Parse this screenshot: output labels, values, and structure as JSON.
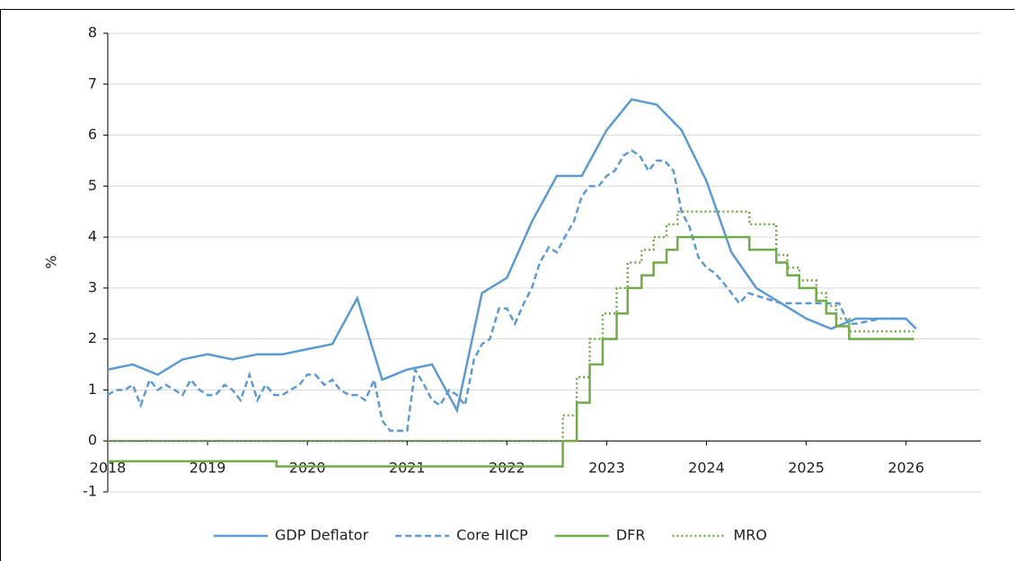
{
  "chart_data": {
    "type": "line",
    "step": "post",
    "y_label": "%",
    "xlim": [
      2018,
      2026.75
    ],
    "ylim": [
      -1,
      8
    ],
    "xticks": [
      2018,
      2019,
      2020,
      2021,
      2022,
      2023,
      2024,
      2025,
      2026
    ],
    "yticks": [
      -1,
      0,
      1,
      2,
      3,
      4,
      5,
      6,
      7,
      8
    ],
    "grid": true,
    "legend": "bottom",
    "series": [
      {
        "name": "GDP Deflator",
        "color": "#5b9bd5",
        "dash": "solid",
        "stepped": false,
        "x": [
          2018,
          2018.25,
          2018.5,
          2018.75,
          2019,
          2019.25,
          2019.5,
          2019.75,
          2020,
          2020.25,
          2020.5,
          2020.75,
          2021,
          2021.25,
          2021.5,
          2021.75,
          2022,
          2022.25,
          2022.5,
          2022.75,
          2023,
          2023.25,
          2023.5,
          2023.75,
          2024,
          2024.25,
          2024.5,
          2024.75,
          2025,
          2025.25,
          2025.5,
          2025.75,
          2026,
          2026.1
        ],
        "values": [
          1.4,
          1.5,
          1.3,
          1.6,
          1.7,
          1.6,
          1.7,
          1.7,
          1.8,
          1.9,
          2.8,
          1.2,
          1.4,
          1.5,
          0.6,
          2.9,
          3.2,
          4.3,
          5.2,
          5.2,
          6.1,
          6.7,
          6.6,
          6.1,
          5.1,
          3.7,
          3.0,
          2.7,
          2.4,
          2.2,
          2.4,
          2.4,
          2.4,
          2.2
        ]
      },
      {
        "name": "Core HICP",
        "color": "#5b9bd5",
        "dash": "dashed",
        "stepped": false,
        "x": [
          2018,
          2018.08,
          2018.17,
          2018.25,
          2018.33,
          2018.42,
          2018.5,
          2018.58,
          2018.67,
          2018.75,
          2018.83,
          2018.92,
          2019,
          2019.08,
          2019.17,
          2019.25,
          2019.33,
          2019.42,
          2019.5,
          2019.58,
          2019.67,
          2019.75,
          2019.83,
          2019.92,
          2020,
          2020.08,
          2020.17,
          2020.25,
          2020.33,
          2020.42,
          2020.5,
          2020.58,
          2020.67,
          2020.75,
          2020.83,
          2020.92,
          2021,
          2021.08,
          2021.17,
          2021.25,
          2021.33,
          2021.42,
          2021.5,
          2021.58,
          2021.67,
          2021.75,
          2021.83,
          2021.92,
          2022,
          2022.08,
          2022.17,
          2022.25,
          2022.33,
          2022.42,
          2022.5,
          2022.58,
          2022.67,
          2022.75,
          2022.83,
          2022.92,
          2023,
          2023.08,
          2023.17,
          2023.25,
          2023.33,
          2023.42,
          2023.5,
          2023.58,
          2023.67,
          2023.75,
          2023.83,
          2023.92,
          2024,
          2024.08,
          2024.17,
          2024.25,
          2024.33,
          2024.42,
          2024.75,
          2025,
          2025.25,
          2025.33,
          2025.42,
          2025.5,
          2025.75,
          2026,
          2026.1
        ],
        "values": [
          0.9,
          1.0,
          1.0,
          1.1,
          0.7,
          1.2,
          1.0,
          1.1,
          1.0,
          0.9,
          1.2,
          1.0,
          0.9,
          0.9,
          1.1,
          1.0,
          0.8,
          1.3,
          0.8,
          1.1,
          0.9,
          0.9,
          1.0,
          1.1,
          1.3,
          1.3,
          1.1,
          1.2,
          1.0,
          0.9,
          0.9,
          0.8,
          1.2,
          0.4,
          0.2,
          0.2,
          0.2,
          1.4,
          1.1,
          0.8,
          0.7,
          1.0,
          0.9,
          0.7,
          1.6,
          1.9,
          2.0,
          2.6,
          2.6,
          2.3,
          2.7,
          3.0,
          3.5,
          3.8,
          3.7,
          4.0,
          4.3,
          4.8,
          5.0,
          5.0,
          5.2,
          5.3,
          5.6,
          5.7,
          5.6,
          5.3,
          5.5,
          5.5,
          5.3,
          4.5,
          4.2,
          3.6,
          3.4,
          3.3,
          3.1,
          2.9,
          2.7,
          2.9,
          2.7,
          2.7,
          2.7,
          2.7,
          2.3,
          2.3,
          2.4,
          2.4,
          2.2
        ]
      },
      {
        "name": "DFR",
        "color": "#70ad47",
        "dash": "solid",
        "stepped": true,
        "x": [
          2018,
          2019.69,
          2022.56,
          2022.7,
          2022.83,
          2022.96,
          2023.1,
          2023.21,
          2023.35,
          2023.47,
          2023.6,
          2023.71,
          2024.43,
          2024.7,
          2024.81,
          2024.93,
          2025.1,
          2025.2,
          2025.3,
          2025.43,
          2026.08
        ],
        "values": [
          -0.4,
          -0.5,
          0,
          0.75,
          1.5,
          2,
          2.5,
          3,
          3.25,
          3.5,
          3.75,
          4,
          3.75,
          3.5,
          3.25,
          3,
          2.75,
          2.5,
          2.25,
          2,
          2
        ]
      },
      {
        "name": "MRO",
        "color": "#70ad47",
        "dash": "dotted",
        "stepped": true,
        "x": [
          2018,
          2022.56,
          2022.7,
          2022.83,
          2022.96,
          2023.1,
          2023.21,
          2023.35,
          2023.47,
          2023.6,
          2023.71,
          2024.43,
          2024.7,
          2024.81,
          2024.93,
          2025.1,
          2025.2,
          2025.3,
          2025.43,
          2026.08
        ],
        "values": [
          0,
          0.5,
          1.25,
          2,
          2.5,
          3,
          3.5,
          3.75,
          4,
          4.25,
          4.5,
          4.25,
          3.65,
          3.4,
          3.15,
          2.9,
          2.65,
          2.4,
          2.15,
          2.15
        ]
      }
    ]
  }
}
